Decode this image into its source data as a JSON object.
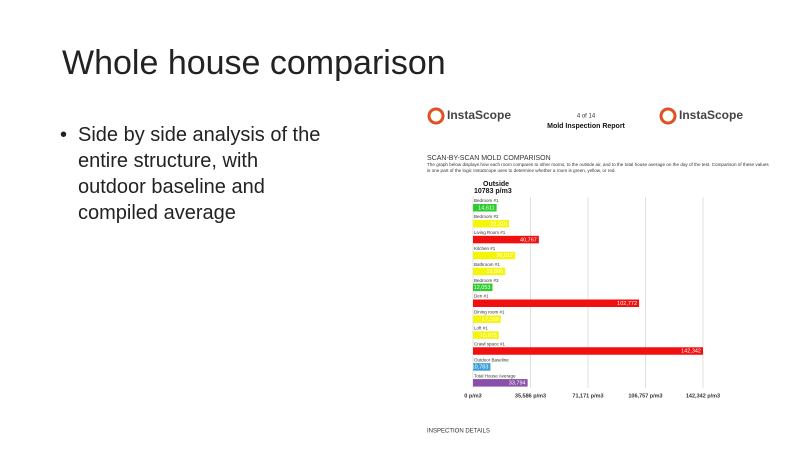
{
  "slide": {
    "title": "Whole house comparison",
    "bullets": [
      "Side by side analysis of the entire structure, with outdoor baseline and compiled average"
    ]
  },
  "report": {
    "brand": "InstaScope",
    "page": "4 of 14",
    "heading": "Mold Inspection Report",
    "section": "SCAN-BY-SCAN MOLD COMPARISON",
    "description": "The graph below displays how each room compares to other rooms, to the outside air, and to the total house average on the day of the test. Comparison of these values is one part of the logic InstaScope uses to determine whether a room is green, yellow, or red.",
    "outside_label": "Outside",
    "outside_value": "10783 p/m3",
    "footer": "INSPECTION DETAILS"
  },
  "chart_data": {
    "type": "bar",
    "orientation": "horizontal",
    "categories": [
      "Bedroom #1",
      "Bedroom #2",
      "Living Room #1",
      "Kitchen #1",
      "Bathroom #1",
      "Bedroom #3",
      "Den #1",
      "Dining room #1",
      "Loft #1",
      "Crawl space #1",
      "Outdoor Baseline",
      "Total House Average"
    ],
    "values": [
      14611,
      22310,
      40767,
      26017,
      19895,
      12053,
      102772,
      17159,
      15975,
      142342,
      10783,
      33794
    ],
    "value_labels": [
      "14,611",
      "22,310",
      "40,767",
      "26,017",
      "19,895",
      "12,053",
      "102,772",
      "17,159",
      "15,975",
      "142,342",
      "10,783",
      "33,794"
    ],
    "colors": [
      "#2ecc2e",
      "#f5f50a",
      "#f01010",
      "#f5f50a",
      "#f5f50a",
      "#2ecc2e",
      "#f01010",
      "#f5f50a",
      "#f5f50a",
      "#f01010",
      "#3a9fd8",
      "#8a4fa8"
    ],
    "xlim": [
      0,
      142342
    ],
    "xticks": [
      {
        "value": 0,
        "label": "0 p/m3"
      },
      {
        "value": 35586,
        "label": "35,586 p/m3"
      },
      {
        "value": 71171,
        "label": "71,171 p/m3"
      },
      {
        "value": 106757,
        "label": "106,757 p/m3"
      },
      {
        "value": 142342,
        "label": "142,342 p/m3"
      }
    ],
    "grid": true
  }
}
